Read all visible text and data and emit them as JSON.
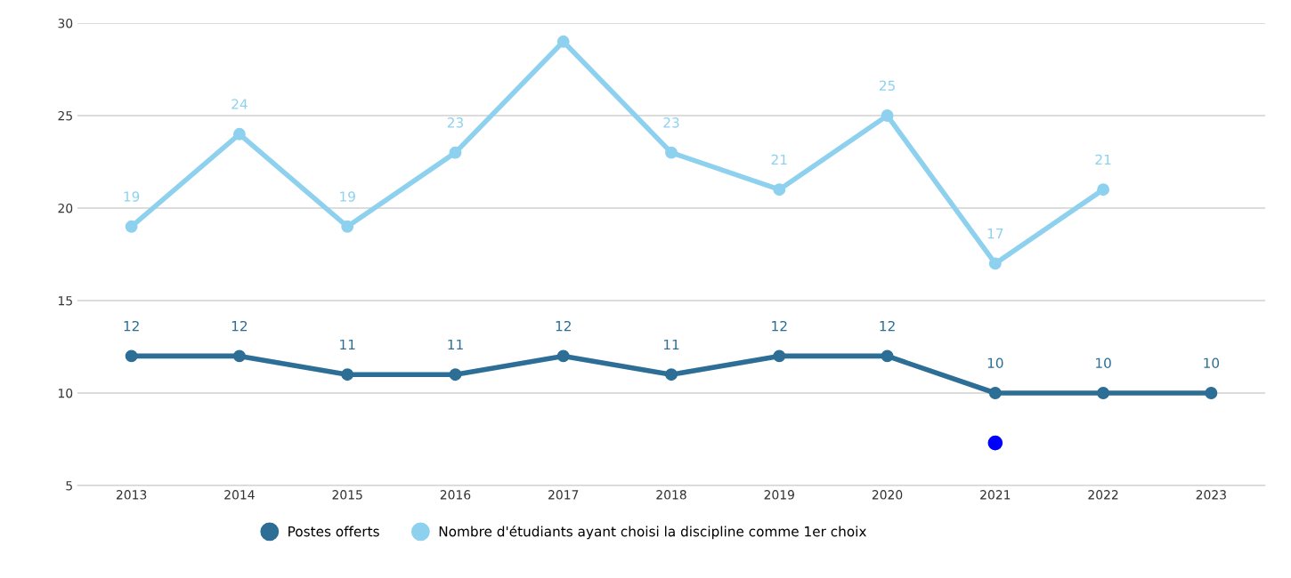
{
  "chart_data": {
    "type": "line",
    "categories": [
      "2013",
      "2014",
      "2015",
      "2016",
      "2017",
      "2018",
      "2019",
      "2020",
      "2021",
      "2022",
      "2023"
    ],
    "series": [
      {
        "name": "Postes offerts",
        "color": "#2c6e95",
        "values": [
          12,
          12,
          11,
          11,
          12,
          11,
          12,
          12,
          10,
          10,
          10
        ],
        "value_labels": [
          "12",
          "12",
          "11",
          "11",
          "12",
          "11",
          "12",
          "12",
          "10",
          "10",
          "10"
        ]
      },
      {
        "name": "Nombre d'étudiants ayant choisi la discipline comme 1er choix",
        "color": "#8dd1ef",
        "values": [
          19,
          24,
          19,
          23,
          29,
          23,
          21,
          25,
          17,
          21,
          null
        ],
        "value_labels": [
          "19",
          "24",
          "19",
          "23",
          null,
          "23",
          "21",
          "25",
          "17",
          "21",
          null
        ]
      },
      {
        "type": "scatter",
        "color": "#0000ff",
        "values": [
          null,
          null,
          null,
          null,
          null,
          null,
          null,
          null,
          7.3,
          null,
          null
        ]
      }
    ],
    "ylim": [
      5,
      30
    ],
    "yticks": [
      5,
      10,
      15,
      20,
      25,
      30
    ],
    "grid": "y",
    "legend": "bottom",
    "marker": "circle",
    "line_style": "solid"
  }
}
